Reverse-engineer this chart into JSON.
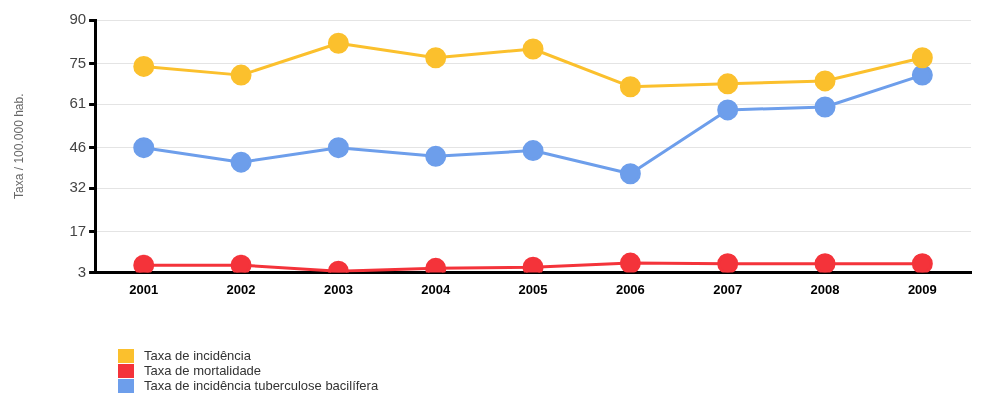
{
  "chart_data": {
    "type": "line",
    "ylabel": "Taxa / 100.000 hab.",
    "categories": [
      "2001",
      "2002",
      "2003",
      "2004",
      "2005",
      "2006",
      "2007",
      "2008",
      "2009"
    ],
    "ylim": [
      3,
      90
    ],
    "yticks": [
      3,
      17,
      32,
      46,
      61,
      75,
      90
    ],
    "grid": "y",
    "legend": "bottom",
    "marker": "circle",
    "line_style": "solid",
    "series": [
      {
        "name": "Taxa de incidência",
        "color": "#fbc02d",
        "values": [
          74,
          71,
          82,
          77,
          80,
          67,
          68,
          69,
          77
        ]
      },
      {
        "name": "Taxa de mortalidade",
        "color": "#f4333a",
        "values": [
          5.5,
          5.5,
          3.4,
          4.4,
          4.8,
          6.2,
          6,
          6,
          6
        ]
      },
      {
        "name": "Taxa de incidência tuberculose bacilífera",
        "color": "#6d9eeb",
        "values": [
          46,
          41,
          46,
          43,
          45,
          37,
          59,
          60,
          71
        ]
      }
    ]
  }
}
